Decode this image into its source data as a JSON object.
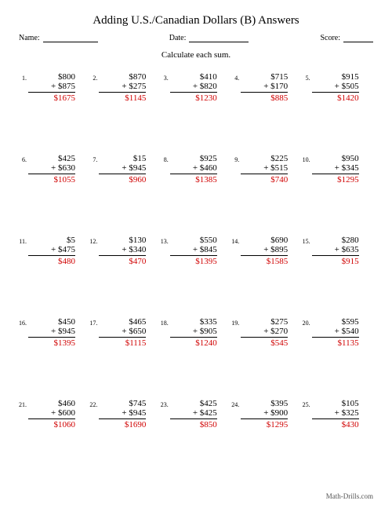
{
  "title": "Adding U.S./Canadian Dollars (B) Answers",
  "labels": {
    "name": "Name:",
    "date": "Date:",
    "score": "Score:"
  },
  "instruction": "Calculate each sum.",
  "footer": "Math-Drills.com",
  "underline_widths": {
    "name": 70,
    "date": 76,
    "score": 38
  },
  "colors": {
    "answer": "#d00000",
    "text": "#000000",
    "footer": "#555555"
  },
  "font_sizes": {
    "title": 15,
    "header": 10,
    "instruction": 11,
    "problem": 11,
    "pnum": 8,
    "footer": 9
  },
  "problems": [
    {
      "n": "1.",
      "a": "$800",
      "b": "+ $875",
      "ans": "$1675"
    },
    {
      "n": "2.",
      "a": "$870",
      "b": "+ $275",
      "ans": "$1145"
    },
    {
      "n": "3.",
      "a": "$410",
      "b": "+ $820",
      "ans": "$1230"
    },
    {
      "n": "4.",
      "a": "$715",
      "b": "+ $170",
      "ans": "$885"
    },
    {
      "n": "5.",
      "a": "$915",
      "b": "+ $505",
      "ans": "$1420"
    },
    {
      "n": "6.",
      "a": "$425",
      "b": "+ $630",
      "ans": "$1055"
    },
    {
      "n": "7.",
      "a": "$15",
      "b": "+ $945",
      "ans": "$960"
    },
    {
      "n": "8.",
      "a": "$925",
      "b": "+ $460",
      "ans": "$1385"
    },
    {
      "n": "9.",
      "a": "$225",
      "b": "+ $515",
      "ans": "$740"
    },
    {
      "n": "10.",
      "a": "$950",
      "b": "+ $345",
      "ans": "$1295"
    },
    {
      "n": "11.",
      "a": "$5",
      "b": "+ $475",
      "ans": "$480"
    },
    {
      "n": "12.",
      "a": "$130",
      "b": "+ $340",
      "ans": "$470"
    },
    {
      "n": "13.",
      "a": "$550",
      "b": "+ $845",
      "ans": "$1395"
    },
    {
      "n": "14.",
      "a": "$690",
      "b": "+ $895",
      "ans": "$1585"
    },
    {
      "n": "15.",
      "a": "$280",
      "b": "+ $635",
      "ans": "$915"
    },
    {
      "n": "16.",
      "a": "$450",
      "b": "+ $945",
      "ans": "$1395"
    },
    {
      "n": "17.",
      "a": "$465",
      "b": "+ $650",
      "ans": "$1115"
    },
    {
      "n": "18.",
      "a": "$335",
      "b": "+ $905",
      "ans": "$1240"
    },
    {
      "n": "19.",
      "a": "$275",
      "b": "+ $270",
      "ans": "$545"
    },
    {
      "n": "20.",
      "a": "$595",
      "b": "+ $540",
      "ans": "$1135"
    },
    {
      "n": "21.",
      "a": "$460",
      "b": "+ $600",
      "ans": "$1060"
    },
    {
      "n": "22.",
      "a": "$745",
      "b": "+ $945",
      "ans": "$1690"
    },
    {
      "n": "23.",
      "a": "$425",
      "b": "+ $425",
      "ans": "$850"
    },
    {
      "n": "24.",
      "a": "$395",
      "b": "+ $900",
      "ans": "$1295"
    },
    {
      "n": "25.",
      "a": "$105",
      "b": "+ $325",
      "ans": "$430"
    }
  ]
}
